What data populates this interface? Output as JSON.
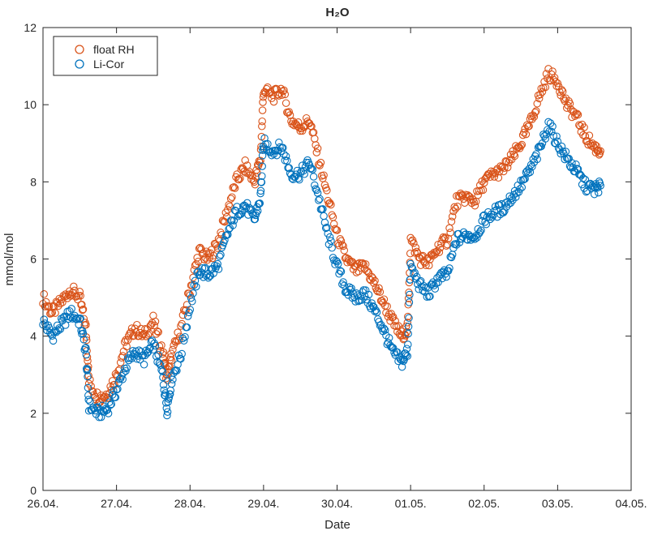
{
  "chart_data": {
    "type": "scatter",
    "title": "H₂O",
    "xlabel": "Date",
    "ylabel": "mmol/mol",
    "x_type": "date",
    "x_tick_dates": [
      "2024-04-26",
      "2024-04-27",
      "2024-04-28",
      "2024-04-29",
      "2024-04-30",
      "2024-05-01",
      "2024-05-02",
      "2024-05-03",
      "2024-05-04"
    ],
    "x_tick_labels": [
      "26.04.",
      "27.04.",
      "28.04.",
      "29.04.",
      "30.04.",
      "01.05.",
      "02.05.",
      "03.05.",
      "04.05."
    ],
    "xlim": [
      "2024-04-26",
      "2024-05-04"
    ],
    "ylim": [
      0,
      12
    ],
    "y_ticks": [
      0,
      2,
      4,
      6,
      8,
      10,
      12
    ],
    "grid": false,
    "legend_position": "top-left",
    "marker": "open-circle",
    "series": [
      {
        "name": "float RH",
        "color": "#D95319",
        "points": [
          [
            "2024-04-26T00:00",
            5.0
          ],
          [
            "2024-04-26T03:00",
            4.6
          ],
          [
            "2024-04-26T06:00",
            4.9
          ],
          [
            "2024-04-26T09:00",
            5.2
          ],
          [
            "2024-04-26T12:00",
            5.0
          ],
          [
            "2024-04-26T14:00",
            4.2
          ],
          [
            "2024-04-26T15:00",
            2.8
          ],
          [
            "2024-04-26T18:00",
            2.4
          ],
          [
            "2024-04-26T21:00",
            2.5
          ],
          [
            "2024-04-27T00:00",
            3.0
          ],
          [
            "2024-04-27T03:00",
            3.8
          ],
          [
            "2024-04-27T06:00",
            4.2
          ],
          [
            "2024-04-27T09:00",
            4.0
          ],
          [
            "2024-04-27T12:00",
            4.4
          ],
          [
            "2024-04-27T15:00",
            3.6
          ],
          [
            "2024-04-27T16:30",
            2.9
          ],
          [
            "2024-04-27T18:00",
            3.5
          ],
          [
            "2024-04-27T21:00",
            4.2
          ],
          [
            "2024-04-28T00:00",
            5.2
          ],
          [
            "2024-04-28T03:00",
            6.2
          ],
          [
            "2024-04-28T06:00",
            6.0
          ],
          [
            "2024-04-28T09:00",
            6.4
          ],
          [
            "2024-04-28T12:00",
            7.2
          ],
          [
            "2024-04-28T15:00",
            8.0
          ],
          [
            "2024-04-28T18:00",
            8.4
          ],
          [
            "2024-04-28T21:00",
            8.0
          ],
          [
            "2024-04-28T23:00",
            8.6
          ],
          [
            "2024-04-29T00:00",
            10.4
          ],
          [
            "2024-04-29T03:00",
            10.2
          ],
          [
            "2024-04-29T06:00",
            10.4
          ],
          [
            "2024-04-29T09:00",
            9.6
          ],
          [
            "2024-04-29T12:00",
            9.4
          ],
          [
            "2024-04-29T15:00",
            9.6
          ],
          [
            "2024-04-29T18:00",
            8.6
          ],
          [
            "2024-04-29T21:00",
            7.6
          ],
          [
            "2024-04-30T00:00",
            6.6
          ],
          [
            "2024-04-30T03:00",
            6.0
          ],
          [
            "2024-04-30T06:00",
            5.7
          ],
          [
            "2024-04-30T09:00",
            5.8
          ],
          [
            "2024-04-30T12:00",
            5.4
          ],
          [
            "2024-04-30T15:00",
            4.9
          ],
          [
            "2024-04-30T18:00",
            4.4
          ],
          [
            "2024-04-30T21:00",
            4.0
          ],
          [
            "2024-04-30T23:00",
            4.2
          ],
          [
            "2024-05-01T00:00",
            6.5
          ],
          [
            "2024-05-01T03:00",
            6.0
          ],
          [
            "2024-05-01T06:00",
            5.9
          ],
          [
            "2024-05-01T09:00",
            6.3
          ],
          [
            "2024-05-01T12:00",
            6.5
          ],
          [
            "2024-05-01T15:00",
            7.5
          ],
          [
            "2024-05-01T18:00",
            7.6
          ],
          [
            "2024-05-01T21:00",
            7.5
          ],
          [
            "2024-05-02T00:00",
            8.0
          ],
          [
            "2024-05-02T03:00",
            8.2
          ],
          [
            "2024-05-02T06:00",
            8.3
          ],
          [
            "2024-05-02T09:00",
            8.6
          ],
          [
            "2024-05-02T12:00",
            9.0
          ],
          [
            "2024-05-02T15:00",
            9.5
          ],
          [
            "2024-05-02T18:00",
            10.2
          ],
          [
            "2024-05-02T21:00",
            10.8
          ],
          [
            "2024-05-03T00:00",
            10.6
          ],
          [
            "2024-05-03T03:00",
            10.0
          ],
          [
            "2024-05-03T06:00",
            9.7
          ],
          [
            "2024-05-03T09:00",
            9.2
          ],
          [
            "2024-05-03T12:00",
            8.9
          ],
          [
            "2024-05-03T14:00",
            8.8
          ]
        ]
      },
      {
        "name": "Li-Cor",
        "color": "#0072BD",
        "points": [
          [
            "2024-04-26T00:00",
            4.4
          ],
          [
            "2024-04-26T03:00",
            4.0
          ],
          [
            "2024-04-26T06:00",
            4.3
          ],
          [
            "2024-04-26T09:00",
            4.6
          ],
          [
            "2024-04-26T12:00",
            4.4
          ],
          [
            "2024-04-26T14:00",
            3.6
          ],
          [
            "2024-04-26T15:00",
            2.2
          ],
          [
            "2024-04-26T18:00",
            2.0
          ],
          [
            "2024-04-26T21:00",
            2.1
          ],
          [
            "2024-04-27T00:00",
            2.6
          ],
          [
            "2024-04-27T03:00",
            3.2
          ],
          [
            "2024-04-27T06:00",
            3.6
          ],
          [
            "2024-04-27T09:00",
            3.4
          ],
          [
            "2024-04-27T12:00",
            3.8
          ],
          [
            "2024-04-27T15:00",
            3.0
          ],
          [
            "2024-04-27T16:30",
            2.1
          ],
          [
            "2024-04-27T18:00",
            2.9
          ],
          [
            "2024-04-27T21:00",
            3.5
          ],
          [
            "2024-04-28T00:00",
            4.8
          ],
          [
            "2024-04-28T03:00",
            5.7
          ],
          [
            "2024-04-28T06:00",
            5.6
          ],
          [
            "2024-04-28T09:00",
            5.8
          ],
          [
            "2024-04-28T12:00",
            6.6
          ],
          [
            "2024-04-28T15:00",
            7.2
          ],
          [
            "2024-04-28T18:00",
            7.4
          ],
          [
            "2024-04-28T21:00",
            7.0
          ],
          [
            "2024-04-28T23:00",
            7.6
          ],
          [
            "2024-04-29T00:00",
            9.0
          ],
          [
            "2024-04-29T03:00",
            8.8
          ],
          [
            "2024-04-29T06:00",
            8.9
          ],
          [
            "2024-04-29T09:00",
            8.2
          ],
          [
            "2024-04-29T12:00",
            8.2
          ],
          [
            "2024-04-29T15:00",
            8.5
          ],
          [
            "2024-04-29T18:00",
            7.6
          ],
          [
            "2024-04-29T21:00",
            6.6
          ],
          [
            "2024-04-30T00:00",
            5.8
          ],
          [
            "2024-04-30T03:00",
            5.2
          ],
          [
            "2024-04-30T06:00",
            5.0
          ],
          [
            "2024-04-30T09:00",
            5.1
          ],
          [
            "2024-04-30T12:00",
            4.7
          ],
          [
            "2024-04-30T15:00",
            4.2
          ],
          [
            "2024-04-30T18:00",
            3.6
          ],
          [
            "2024-04-30T21:00",
            3.3
          ],
          [
            "2024-04-30T23:00",
            3.6
          ],
          [
            "2024-05-01T00:00",
            5.8
          ],
          [
            "2024-05-01T03:00",
            5.3
          ],
          [
            "2024-05-01T06:00",
            5.1
          ],
          [
            "2024-05-01T09:00",
            5.5
          ],
          [
            "2024-05-01T12:00",
            5.6
          ],
          [
            "2024-05-01T15:00",
            6.5
          ],
          [
            "2024-05-01T18:00",
            6.6
          ],
          [
            "2024-05-01T21:00",
            6.6
          ],
          [
            "2024-05-02T00:00",
            7.0
          ],
          [
            "2024-05-02T03:00",
            7.2
          ],
          [
            "2024-05-02T06:00",
            7.3
          ],
          [
            "2024-05-02T09:00",
            7.6
          ],
          [
            "2024-05-02T12:00",
            7.9
          ],
          [
            "2024-05-02T15:00",
            8.3
          ],
          [
            "2024-05-02T18:00",
            8.8
          ],
          [
            "2024-05-02T21:00",
            9.5
          ],
          [
            "2024-05-03T00:00",
            9.0
          ],
          [
            "2024-05-03T03:00",
            8.6
          ],
          [
            "2024-05-03T06:00",
            8.3
          ],
          [
            "2024-05-03T09:00",
            7.9
          ],
          [
            "2024-05-03T12:00",
            7.8
          ],
          [
            "2024-05-03T14:00",
            7.9
          ]
        ]
      }
    ]
  }
}
